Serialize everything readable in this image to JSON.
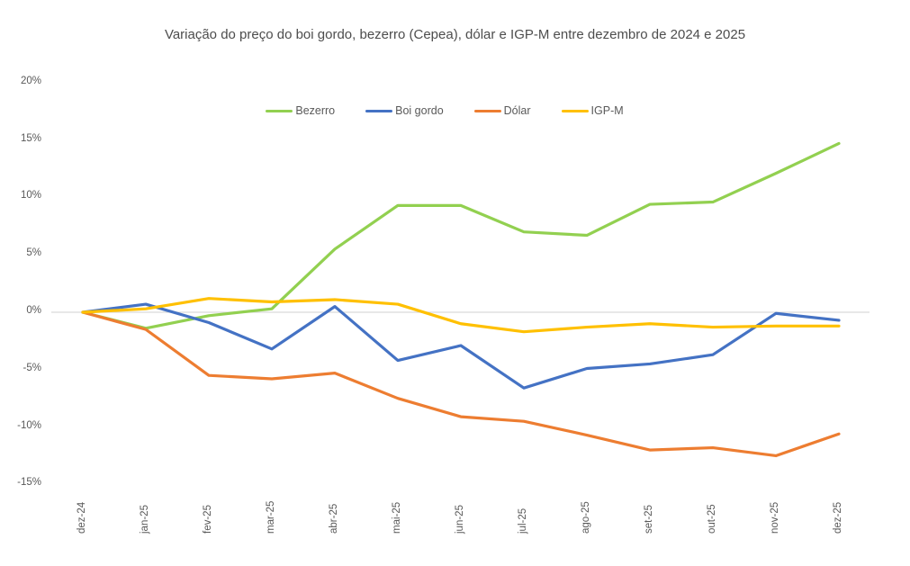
{
  "header": {
    "title": "Variação do preço do boi gordo, bezerro (Cepea), dólar e IGP-M entre dezembro de 2024 e 2025"
  },
  "chart_data": {
    "type": "line",
    "categories": [
      "dez-24",
      "jan-25",
      "fev-25",
      "mar-25",
      "abr-25",
      "mai-25",
      "jun-25",
      "jul-25",
      "ago-25",
      "set-25",
      "out-25",
      "nov-25",
      "dez-25"
    ],
    "series": [
      {
        "name": "Bezerro",
        "color": "#92D050",
        "values": [
          0,
          -1.4,
          -0.3,
          0.3,
          5.5,
          9.3,
          9.3,
          7.0,
          6.7,
          9.4,
          9.6,
          12.1,
          14.7
        ]
      },
      {
        "name": "Boi gordo",
        "color": "#4472C4",
        "values": [
          0,
          0.7,
          -0.9,
          -3.2,
          0.5,
          -4.2,
          -2.9,
          -6.6,
          -4.9,
          -4.5,
          -3.7,
          -0.1,
          -0.7
        ]
      },
      {
        "name": "Dólar",
        "color": "#ED7D31",
        "values": [
          0,
          -1.5,
          -5.5,
          -5.8,
          -5.3,
          -7.5,
          -9.1,
          -9.5,
          -10.7,
          -12.0,
          -11.8,
          -12.5,
          -10.6
        ]
      },
      {
        "name": "IGP-M",
        "color": "#FFC000",
        "values": [
          0,
          0.3,
          1.2,
          0.9,
          1.1,
          0.7,
          -1.0,
          -1.7,
          -1.3,
          -1.0,
          -1.3,
          -1.2,
          -1.2
        ]
      }
    ],
    "y_ticks": [
      "20%",
      "15%",
      "10%",
      "5%",
      "0%",
      "-5%",
      "-10%",
      "-15%"
    ],
    "y_tick_values": [
      20,
      15,
      10,
      5,
      0,
      -5,
      -10,
      -15
    ],
    "ylim": [
      -15,
      20
    ],
    "unit": "%",
    "grid": "zero-line-only",
    "zero_line_color": "#D9D9D9",
    "legend_position": "top-center"
  }
}
